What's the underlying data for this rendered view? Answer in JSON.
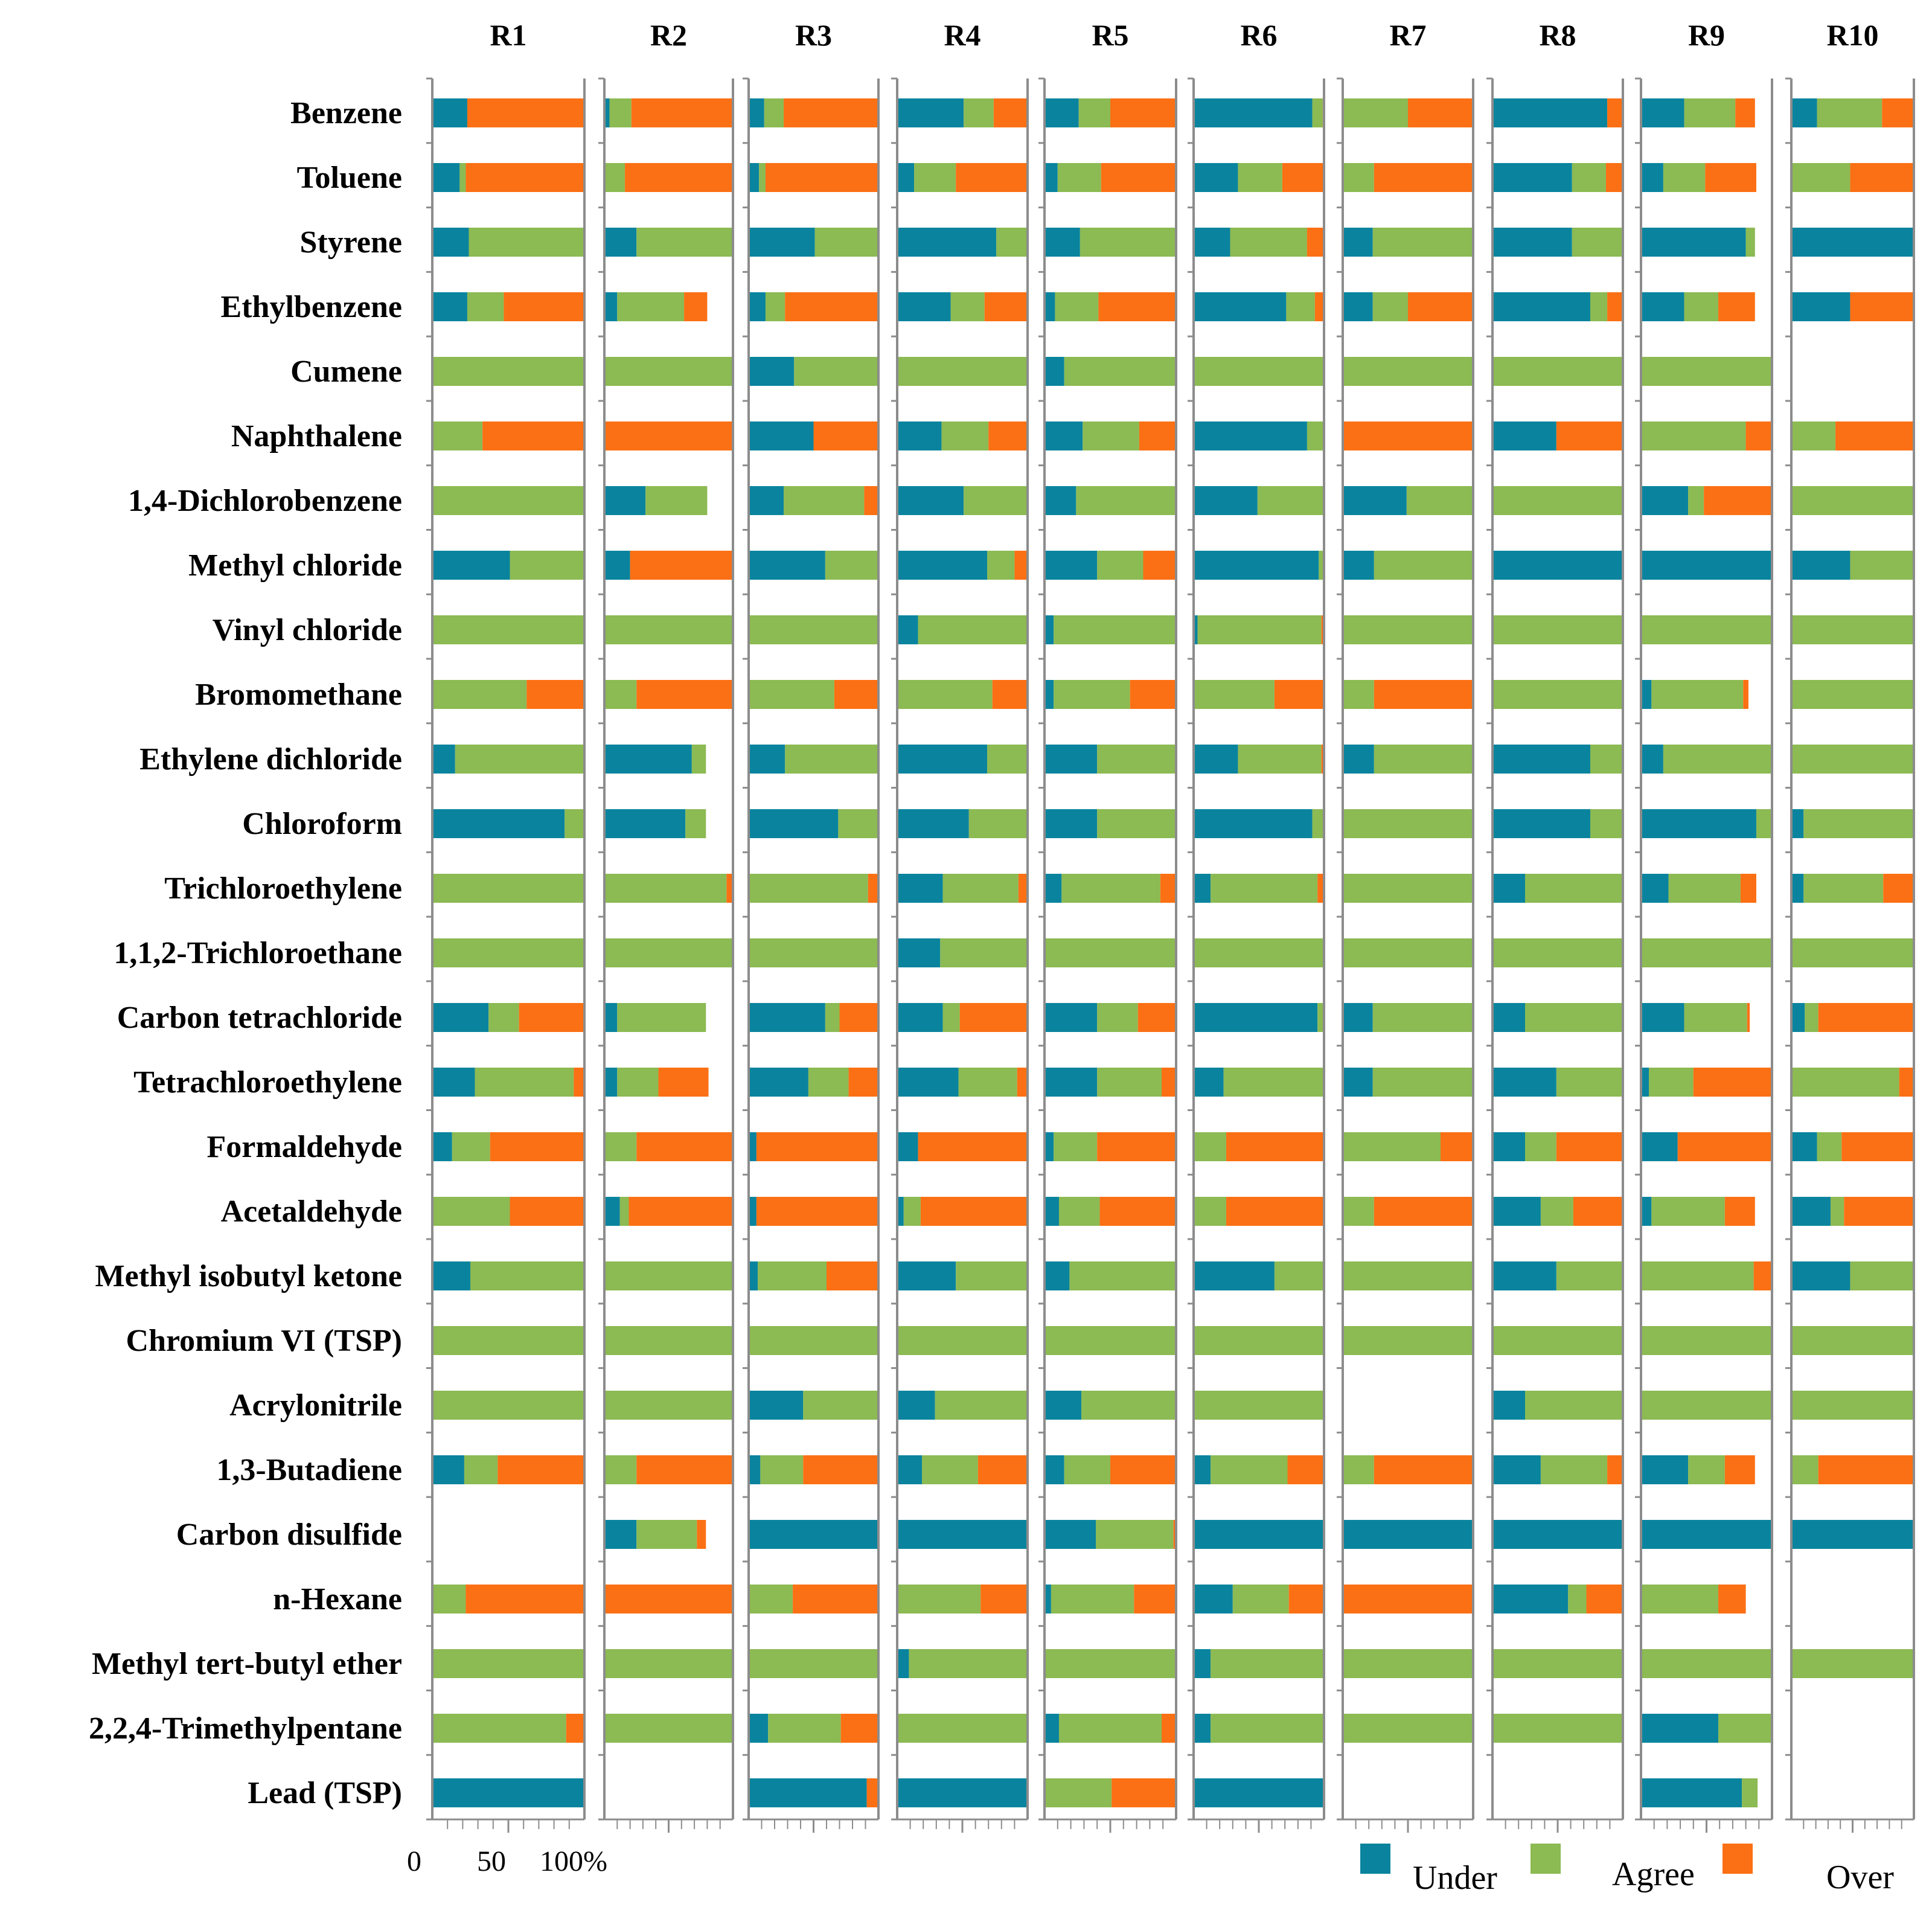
{
  "chart_data": {
    "type": "bar",
    "subtype": "stacked-horizontal-small-multiples",
    "unit": "%",
    "x_range": [
      0,
      100
    ],
    "x_ticks": [
      "0",
      "50",
      "100%"
    ],
    "panels": [
      "R1",
      "R2",
      "R3",
      "R4",
      "R5",
      "R6",
      "R7",
      "R8",
      "R9",
      "R10"
    ],
    "categories": [
      "Benzene",
      "Toluene",
      "Styrene",
      "Ethylbenzene",
      "Cumene",
      "Naphthalene",
      "1,4-Dichlorobenzene",
      "Methyl chloride",
      "Vinyl chloride",
      "Bromomethane",
      "Ethylene dichloride",
      "Chloroform",
      "Trichloroethylene",
      "1,1,2-Trichloroethane",
      "Carbon tetrachloride",
      "Tetrachloroethylene",
      "Formaldehyde",
      "Acetaldehyde",
      "Methyl isobutyl ketone",
      "Chromium VI (TSP)",
      "Acrylonitrile",
      "1,3-Butadiene",
      "Carbon disulfide",
      "n-Hexane",
      "Methyl tert-butyl ether",
      "2,2,4-Trimethylpentane",
      "Lead (TSP)"
    ],
    "series_names": [
      "Under",
      "Agree",
      "Over"
    ],
    "colors": {
      "Under": "#0a849e",
      "Agree": "#8cba53",
      "Over": "#fb7014",
      "axis": "#8c8c8c"
    },
    "legend": {
      "position": "bottom-right",
      "items": [
        "Under",
        "Agree",
        "Over"
      ]
    },
    "values": {
      "R1": [
        [
          23,
          0,
          77
        ],
        [
          18,
          4,
          78
        ],
        [
          24,
          76,
          0
        ],
        [
          23,
          24,
          53
        ],
        [
          0,
          100,
          0
        ],
        [
          0,
          33,
          67
        ],
        [
          0,
          100,
          0
        ],
        [
          51,
          49,
          0
        ],
        [
          0,
          100,
          0
        ],
        [
          0,
          62,
          38
        ],
        [
          15,
          85,
          0
        ],
        [
          87,
          13,
          0
        ],
        [
          0,
          100,
          0
        ],
        [
          0,
          100,
          0
        ],
        [
          37,
          20,
          43
        ],
        [
          28,
          65,
          7
        ],
        [
          13,
          25,
          62
        ],
        [
          0,
          51,
          49
        ],
        [
          25,
          75,
          0
        ],
        [
          0,
          100,
          0
        ],
        [
          0,
          100,
          0
        ],
        [
          21,
          22,
          57
        ],
        null,
        [
          0,
          22,
          78
        ],
        [
          0,
          100,
          0
        ],
        [
          0,
          88,
          12
        ],
        [
          100,
          0,
          0
        ]
      ],
      "R2": [
        [
          4,
          17,
          79
        ],
        [
          0,
          16,
          84
        ],
        [
          25,
          75,
          0
        ],
        [
          10,
          52,
          18
        ],
        [
          0,
          100,
          0
        ],
        [
          0,
          0,
          100
        ],
        [
          32,
          48,
          0
        ],
        [
          20,
          0,
          80
        ],
        [
          0,
          100,
          0
        ],
        [
          0,
          25,
          75
        ],
        [
          68,
          11,
          0
        ],
        [
          63,
          16,
          0
        ],
        [
          0,
          95,
          5
        ],
        [
          0,
          100,
          0
        ],
        [
          10,
          69,
          0
        ],
        [
          10,
          32,
          39
        ],
        [
          0,
          25,
          75
        ],
        [
          12,
          7,
          81
        ],
        [
          0,
          100,
          0
        ],
        [
          0,
          100,
          0
        ],
        [
          0,
          100,
          0
        ],
        [
          0,
          25,
          75
        ],
        [
          25,
          47,
          7
        ],
        [
          0,
          0,
          100
        ],
        [
          0,
          100,
          0
        ],
        [
          0,
          100,
          0
        ],
        null
      ],
      "R3": [
        [
          12,
          15,
          73
        ],
        [
          8,
          5,
          87
        ],
        [
          51,
          49,
          0
        ],
        [
          13,
          15,
          72
        ],
        [
          35,
          65,
          0
        ],
        [
          50,
          0,
          50
        ],
        [
          27,
          62,
          11
        ],
        [
          59,
          41,
          0
        ],
        [
          0,
          100,
          0
        ],
        [
          0,
          66,
          34
        ],
        [
          28,
          72,
          0
        ],
        [
          69,
          31,
          0
        ],
        [
          0,
          92,
          8
        ],
        [
          0,
          100,
          0
        ],
        [
          59,
          11,
          30
        ],
        [
          46,
          31,
          23
        ],
        [
          6,
          0,
          94
        ],
        [
          6,
          0,
          94
        ],
        [
          7,
          53,
          40
        ],
        [
          0,
          100,
          0
        ],
        [
          42,
          58,
          0
        ],
        [
          9,
          33,
          58
        ],
        [
          100,
          0,
          0
        ],
        [
          0,
          34,
          66
        ],
        [
          0,
          100,
          0
        ],
        [
          15,
          56,
          29
        ],
        [
          91,
          0,
          9
        ]
      ],
      "R4": [
        [
          51,
          23,
          26
        ],
        [
          13,
          32,
          55
        ],
        [
          76,
          24,
          0
        ],
        [
          41,
          26,
          33
        ],
        [
          0,
          100,
          0
        ],
        [
          34,
          36,
          30
        ],
        [
          51,
          49,
          0
        ],
        [
          69,
          21,
          10
        ],
        [
          16,
          84,
          0
        ],
        [
          0,
          73,
          27
        ],
        [
          69,
          31,
          0
        ],
        [
          55,
          45,
          0
        ],
        [
          35,
          58,
          7
        ],
        [
          33,
          67,
          0
        ],
        [
          35,
          13,
          52
        ],
        [
          47,
          45,
          8
        ],
        [
          16,
          0,
          84
        ],
        [
          5,
          13,
          82
        ],
        [
          45,
          55,
          0
        ],
        [
          0,
          100,
          0
        ],
        [
          29,
          71,
          0
        ],
        [
          19,
          43,
          38
        ],
        [
          100,
          0,
          0
        ],
        [
          0,
          64,
          36
        ],
        [
          9,
          91,
          0
        ],
        [
          0,
          100,
          0
        ],
        [
          100,
          0,
          0
        ]
      ],
      "R5": [
        [
          26,
          24,
          50
        ],
        [
          10,
          33,
          57
        ],
        [
          27,
          73,
          0
        ],
        [
          8,
          33,
          59
        ],
        [
          15,
          85,
          0
        ],
        [
          29,
          43,
          28
        ],
        [
          24,
          76,
          0
        ],
        [
          40,
          35,
          25
        ],
        [
          7,
          93,
          0
        ],
        [
          7,
          58,
          35
        ],
        [
          40,
          60,
          0
        ],
        [
          40,
          60,
          0
        ],
        [
          13,
          75,
          12
        ],
        [
          0,
          100,
          0
        ],
        [
          40,
          31,
          29
        ],
        [
          40,
          49,
          11
        ],
        [
          7,
          33,
          60
        ],
        [
          11,
          31,
          58
        ],
        [
          19,
          81,
          0
        ],
        [
          0,
          100,
          0
        ],
        [
          28,
          72,
          0
        ],
        [
          15,
          35,
          50
        ],
        [
          39,
          59,
          2
        ],
        [
          5,
          63,
          32
        ],
        [
          0,
          100,
          0
        ],
        [
          11,
          78,
          11
        ],
        [
          0,
          51,
          49
        ]
      ],
      "R6": [
        [
          91,
          8,
          1
        ],
        [
          34,
          34,
          32
        ],
        [
          28,
          59,
          13
        ],
        [
          71,
          22,
          7
        ],
        [
          0,
          100,
          0
        ],
        [
          87,
          13,
          0
        ],
        [
          49,
          51,
          0
        ],
        [
          96,
          4,
          0
        ],
        [
          3,
          95,
          2
        ],
        [
          0,
          62,
          38
        ],
        [
          34,
          64,
          2
        ],
        [
          91,
          9,
          0
        ],
        [
          13,
          82,
          5
        ],
        [
          0,
          100,
          0
        ],
        [
          95,
          5,
          0
        ],
        [
          23,
          77,
          0
        ],
        [
          0,
          25,
          75
        ],
        [
          0,
          25,
          75
        ],
        [
          62,
          38,
          0
        ],
        [
          0,
          100,
          0
        ],
        [
          0,
          100,
          0
        ],
        [
          13,
          59,
          28
        ],
        [
          100,
          0,
          0
        ],
        [
          30,
          43,
          27
        ],
        [
          13,
          87,
          0
        ],
        [
          13,
          87,
          0
        ],
        [
          100,
          0,
          0
        ]
      ],
      "R7": [
        [
          0,
          50,
          50
        ],
        [
          0,
          24,
          76
        ],
        [
          23,
          77,
          0
        ],
        [
          23,
          27,
          50
        ],
        [
          0,
          100,
          0
        ],
        [
          0,
          0,
          100
        ],
        [
          49,
          51,
          0
        ],
        [
          24,
          76,
          0
        ],
        [
          0,
          100,
          0
        ],
        [
          0,
          24,
          76
        ],
        [
          24,
          76,
          0
        ],
        [
          0,
          100,
          0
        ],
        [
          0,
          100,
          0
        ],
        [
          0,
          100,
          0
        ],
        [
          23,
          77,
          0
        ],
        [
          23,
          77,
          0
        ],
        [
          0,
          75,
          25
        ],
        [
          0,
          24,
          76
        ],
        [
          0,
          100,
          0
        ],
        [
          0,
          100,
          0
        ],
        null,
        [
          0,
          24,
          76
        ],
        [
          100,
          0,
          0
        ],
        [
          0,
          0,
          100
        ],
        [
          0,
          100,
          0
        ],
        [
          0,
          100,
          0
        ],
        null
      ],
      "R8": [
        [
          88,
          0,
          12
        ],
        [
          61,
          26,
          13
        ],
        [
          61,
          39,
          0
        ],
        [
          75,
          13,
          12
        ],
        [
          0,
          100,
          0
        ],
        [
          49,
          0,
          51
        ],
        [
          0,
          100,
          0
        ],
        [
          100,
          0,
          0
        ],
        [
          0,
          100,
          0
        ],
        [
          0,
          100,
          0
        ],
        [
          75,
          25,
          0
        ],
        [
          75,
          25,
          0
        ],
        [
          25,
          75,
          0
        ],
        [
          0,
          100,
          0
        ],
        [
          25,
          75,
          0
        ],
        [
          49,
          51,
          0
        ],
        [
          25,
          24,
          51
        ],
        [
          37,
          25,
          38
        ],
        [
          49,
          51,
          0
        ],
        [
          0,
          100,
          0
        ],
        [
          25,
          75,
          0
        ],
        [
          37,
          51,
          12
        ],
        [
          100,
          0,
          0
        ],
        [
          58,
          14,
          28
        ],
        [
          0,
          100,
          0
        ],
        [
          0,
          100,
          0
        ],
        null
      ],
      "R9": [
        [
          33,
          39,
          15
        ],
        [
          17,
          32,
          39
        ],
        [
          80,
          7,
          0
        ],
        [
          33,
          26,
          28
        ],
        [
          0,
          100,
          0
        ],
        [
          0,
          80,
          20
        ],
        [
          36,
          12,
          52
        ],
        [
          100,
          0,
          0
        ],
        [
          0,
          100,
          0
        ],
        [
          8,
          70,
          4
        ],
        [
          17,
          83,
          0
        ],
        [
          88,
          12,
          0
        ],
        [
          21,
          55,
          12
        ],
        [
          0,
          100,
          0
        ],
        [
          33,
          48,
          2
        ],
        [
          6,
          34,
          60
        ],
        [
          28,
          0,
          72
        ],
        [
          8,
          56,
          23
        ],
        [
          0,
          86,
          14
        ],
        [
          0,
          100,
          0
        ],
        [
          0,
          100,
          0
        ],
        [
          36,
          28,
          23
        ],
        [
          100,
          0,
          0
        ],
        [
          0,
          59,
          21
        ],
        [
          0,
          100,
          0
        ],
        [
          59,
          41,
          0
        ],
        [
          77,
          12,
          0
        ]
      ],
      "R10": [
        [
          21,
          53,
          26
        ],
        [
          0,
          48,
          52
        ],
        [
          100,
          0,
          0
        ],
        [
          48,
          0,
          52
        ],
        null,
        [
          0,
          36,
          64
        ],
        [
          0,
          100,
          0
        ],
        [
          48,
          52,
          0
        ],
        [
          0,
          100,
          0
        ],
        [
          0,
          100,
          0
        ],
        [
          0,
          100,
          0
        ],
        [
          10,
          90,
          0
        ],
        [
          10,
          65,
          25
        ],
        [
          0,
          100,
          0
        ],
        [
          11,
          11,
          78
        ],
        [
          0,
          88,
          12
        ],
        [
          21,
          20,
          59
        ],
        [
          32,
          11,
          57
        ],
        [
          48,
          52,
          0
        ],
        [
          0,
          100,
          0
        ],
        [
          0,
          100,
          0
        ],
        [
          0,
          22,
          78
        ],
        [
          100,
          0,
          0
        ],
        null,
        [
          0,
          100,
          0
        ],
        null,
        null
      ]
    }
  }
}
